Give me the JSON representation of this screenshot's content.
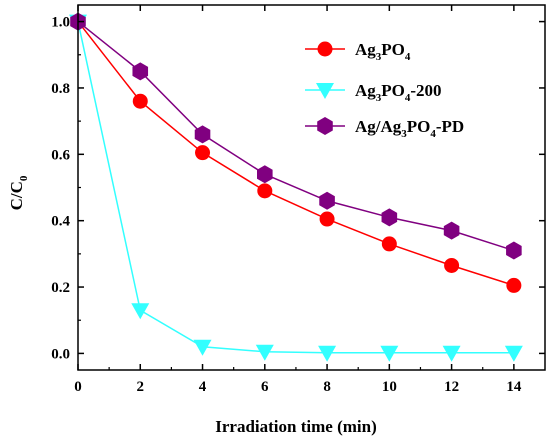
{
  "chart_data": {
    "type": "line",
    "xlabel": "Irradiation time (min)",
    "ylabel": {
      "main": "C/C",
      "sub": "0"
    },
    "xlim": [
      0,
      15
    ],
    "ylim": [
      -0.05,
      1.05
    ],
    "x_ticks": [
      "0",
      "2",
      "4",
      "6",
      "8",
      "10",
      "12",
      "14"
    ],
    "y_ticks": [
      "0.0",
      "0.2",
      "0.4",
      "0.6",
      "0.8",
      "1.0"
    ],
    "grid": false,
    "legend_position": "top-right",
    "series": [
      {
        "name_parts": [
          [
            "Ag",
            false
          ],
          [
            "3",
            true
          ],
          [
            "PO",
            false
          ],
          [
            "4",
            true
          ]
        ],
        "color": "#ff0000",
        "marker": "circle",
        "x": [
          0,
          2,
          4,
          6,
          8,
          10,
          12,
          14
        ],
        "values": [
          1.0,
          0.76,
          0.605,
          0.49,
          0.405,
          0.33,
          0.265,
          0.205
        ]
      },
      {
        "name_parts": [
          [
            "Ag",
            false
          ],
          [
            "3",
            true
          ],
          [
            "PO",
            false
          ],
          [
            "4",
            true
          ],
          [
            "-200",
            false
          ]
        ],
        "color": "#33ffff",
        "marker": "triangle-down",
        "x": [
          0,
          2,
          4,
          6,
          8,
          10,
          12,
          14
        ],
        "values": [
          1.0,
          0.13,
          0.02,
          0.005,
          0.002,
          0.002,
          0.002,
          0.002
        ]
      },
      {
        "name_parts": [
          [
            "Ag/Ag",
            false
          ],
          [
            "3",
            true
          ],
          [
            "PO",
            false
          ],
          [
            "4",
            true
          ],
          [
            "-PD",
            false
          ]
        ],
        "color": "#800080",
        "marker": "hexagon",
        "x": [
          0,
          2,
          4,
          6,
          8,
          10,
          12,
          14
        ],
        "values": [
          1.0,
          0.85,
          0.66,
          0.54,
          0.46,
          0.41,
          0.37,
          0.31
        ]
      }
    ]
  }
}
